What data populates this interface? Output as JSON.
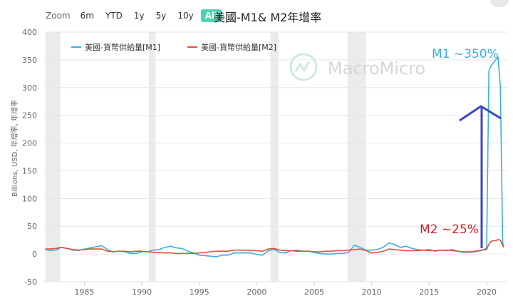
{
  "toolbar": {
    "zoom_label": "Zoom",
    "ranges": [
      "6m",
      "YTD",
      "1y",
      "5y",
      "10y",
      "All"
    ],
    "active": "All"
  },
  "watermark": "MacroMicro",
  "colors": {
    "m1": "#3aaee0",
    "m2": "#e0533a",
    "annotation_blue": "#3a45c9",
    "annotation_red": "#d81f26",
    "recession": "#ebebeb"
  },
  "chart_data": {
    "type": "line",
    "title": "美國-M1& M2年增率",
    "ylabel": "Billions, USD, 年增率, 年增率",
    "xlabel": "",
    "ylim": [
      -50,
      400
    ],
    "yticks": [
      400,
      350,
      300,
      250,
      200,
      150,
      100,
      50,
      0,
      -50
    ],
    "xlim": [
      1981.5,
      2021.8
    ],
    "xticks": [
      1985,
      1990,
      1995,
      2000,
      2005,
      2010,
      2015,
      2020
    ],
    "recessions": [
      [
        1981.6,
        1982.9
      ],
      [
        1990.6,
        1991.2
      ],
      [
        2001.2,
        2001.9
      ],
      [
        2007.9,
        2009.5
      ]
    ],
    "legend_position": "top-left",
    "series": [
      {
        "name": "美國-貨幣供給量[M1]",
        "x": [
          1981.6,
          1982.0,
          1982.5,
          1983.0,
          1983.5,
          1984.0,
          1984.5,
          1985.0,
          1985.5,
          1986.0,
          1986.5,
          1987.0,
          1987.5,
          1988.0,
          1988.5,
          1989.0,
          1989.5,
          1990.0,
          1990.5,
          1991.0,
          1991.5,
          1992.0,
          1992.5,
          1993.0,
          1993.5,
          1994.0,
          1994.5,
          1995.0,
          1995.5,
          1996.0,
          1996.5,
          1997.0,
          1997.5,
          1998.0,
          1998.5,
          1999.0,
          1999.5,
          2000.0,
          2000.5,
          2001.0,
          2001.5,
          2002.0,
          2002.5,
          2003.0,
          2003.5,
          2004.0,
          2004.5,
          2005.0,
          2005.5,
          2006.0,
          2006.5,
          2007.0,
          2007.5,
          2008.0,
          2008.5,
          2009.0,
          2009.5,
          2010.0,
          2010.5,
          2011.0,
          2011.5,
          2012.0,
          2012.5,
          2013.0,
          2013.5,
          2014.0,
          2014.5,
          2015.0,
          2015.5,
          2016.0,
          2016.5,
          2017.0,
          2017.5,
          2018.0,
          2018.5,
          2019.0,
          2019.5,
          2020.0,
          2020.2,
          2020.4,
          2020.6,
          2020.8,
          2021.0,
          2021.2,
          2021.4,
          2021.5
        ],
        "values": [
          8,
          6,
          7,
          12,
          10,
          7,
          6,
          9,
          11,
          13,
          15,
          8,
          4,
          5,
          4,
          1,
          1,
          4,
          4,
          7,
          8,
          12,
          14,
          11,
          10,
          5,
          2,
          -2,
          -3,
          -4,
          -5,
          -2,
          -2,
          2,
          2,
          2,
          2,
          -1,
          -2,
          6,
          8,
          3,
          2,
          6,
          7,
          5,
          5,
          3,
          1,
          0,
          0,
          1,
          1,
          3,
          16,
          12,
          7,
          7,
          8,
          12,
          20,
          17,
          12,
          14,
          10,
          8,
          7,
          8,
          5,
          7,
          6,
          8,
          5,
          3,
          3,
          4,
          6,
          10,
          330,
          340,
          345,
          350,
          355,
          300,
          20,
          15
        ]
      },
      {
        "name": "美國-貨幣供給量[M2]",
        "x": [
          1981.6,
          1982.0,
          1982.5,
          1983.0,
          1983.5,
          1984.0,
          1984.5,
          1985.0,
          1985.5,
          1986.0,
          1986.5,
          1987.0,
          1987.5,
          1988.0,
          1988.5,
          1989.0,
          1989.5,
          1990.0,
          1990.5,
          1991.0,
          1991.5,
          1992.0,
          1992.5,
          1993.0,
          1993.5,
          1994.0,
          1994.5,
          1995.0,
          1995.5,
          1996.0,
          1996.5,
          1997.0,
          1997.5,
          1998.0,
          1998.5,
          1999.0,
          1999.5,
          2000.0,
          2000.5,
          2001.0,
          2001.5,
          2002.0,
          2002.5,
          2003.0,
          2003.5,
          2004.0,
          2004.5,
          2005.0,
          2005.5,
          2006.0,
          2006.5,
          2007.0,
          2007.5,
          2008.0,
          2008.5,
          2009.0,
          2009.5,
          2010.0,
          2010.5,
          2011.0,
          2011.5,
          2012.0,
          2012.5,
          2013.0,
          2013.5,
          2014.0,
          2014.5,
          2015.0,
          2015.5,
          2016.0,
          2016.5,
          2017.0,
          2017.5,
          2018.0,
          2018.5,
          2019.0,
          2019.5,
          2020.0,
          2020.2,
          2020.4,
          2020.6,
          2020.8,
          2021.0,
          2021.2,
          2021.4,
          2021.5
        ],
        "values": [
          9,
          9,
          10,
          12,
          10,
          8,
          7,
          8,
          9,
          9,
          9,
          5,
          4,
          5,
          5,
          4,
          5,
          5,
          4,
          3,
          3,
          2,
          2,
          1,
          1,
          1,
          1,
          2,
          3,
          4,
          5,
          5,
          5,
          7,
          7,
          7,
          6,
          6,
          5,
          9,
          10,
          7,
          6,
          6,
          5,
          5,
          5,
          4,
          4,
          5,
          5,
          6,
          6,
          7,
          8,
          9,
          6,
          2,
          3,
          5,
          9,
          8,
          7,
          6,
          6,
          6,
          7,
          6,
          6,
          7,
          7,
          6,
          5,
          4,
          4,
          5,
          7,
          8,
          18,
          23,
          24,
          24,
          26,
          25,
          15,
          12
        ]
      }
    ],
    "annotations": [
      {
        "text": "M1 ~350%"
      },
      {
        "text": "M2 ~25%"
      }
    ]
  }
}
